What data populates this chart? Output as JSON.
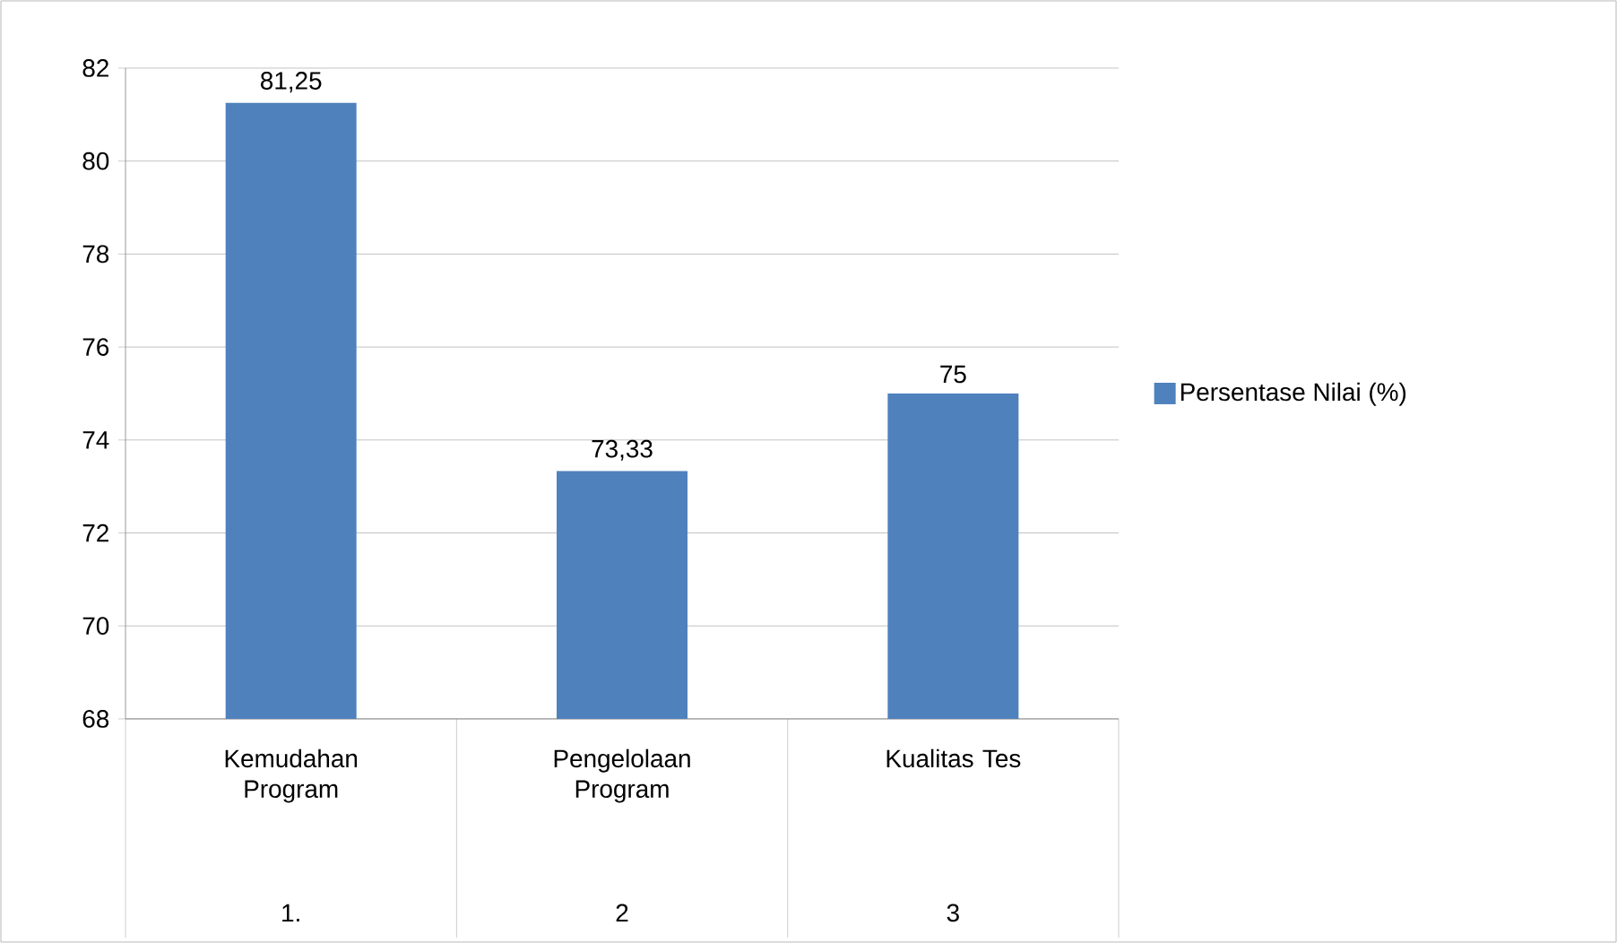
{
  "chart_data": {
    "type": "bar",
    "categories": [
      "Kemudahan Program",
      "Pengelolaan Program",
      "Kualitas Tes"
    ],
    "series": [
      {
        "name": "Persentase Nilai (%)",
        "color": "#4f81bd",
        "values": [
          81.25,
          73.33,
          75
        ],
        "value_labels": [
          "81,25",
          "73,33",
          "75"
        ]
      }
    ],
    "annotations": [
      "1.",
      "2",
      "3"
    ],
    "ylim": [
      68,
      82
    ],
    "yticks": [
      68,
      70,
      72,
      74,
      76,
      78,
      80,
      82
    ],
    "grid": "y",
    "legend": "right"
  }
}
